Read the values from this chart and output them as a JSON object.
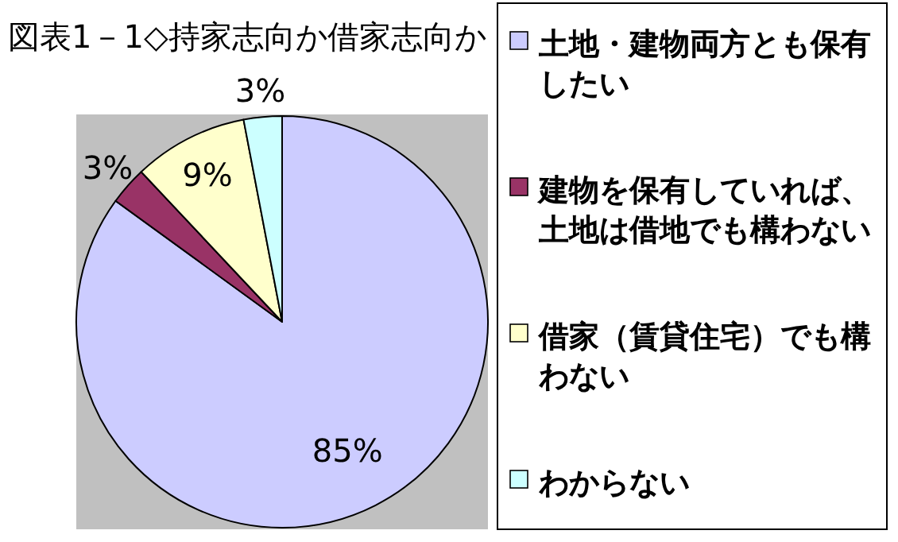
{
  "chart_data": {
    "type": "pie",
    "title": "図表1－1◇持家志向か借家志向か",
    "categories": [
      "土地・建物両方とも保有したい",
      "建物を保有していれば、土地は借地でも構わない",
      "借家（賃貸住宅）でも構わない",
      "わからない"
    ],
    "values": [
      85,
      3,
      9,
      3
    ],
    "colors": [
      "#ccccff",
      "#993366",
      "#ffffcc",
      "#ccffff"
    ],
    "value_labels": [
      "85%",
      "3%",
      "9%",
      "3%"
    ],
    "legend": "right"
  }
}
